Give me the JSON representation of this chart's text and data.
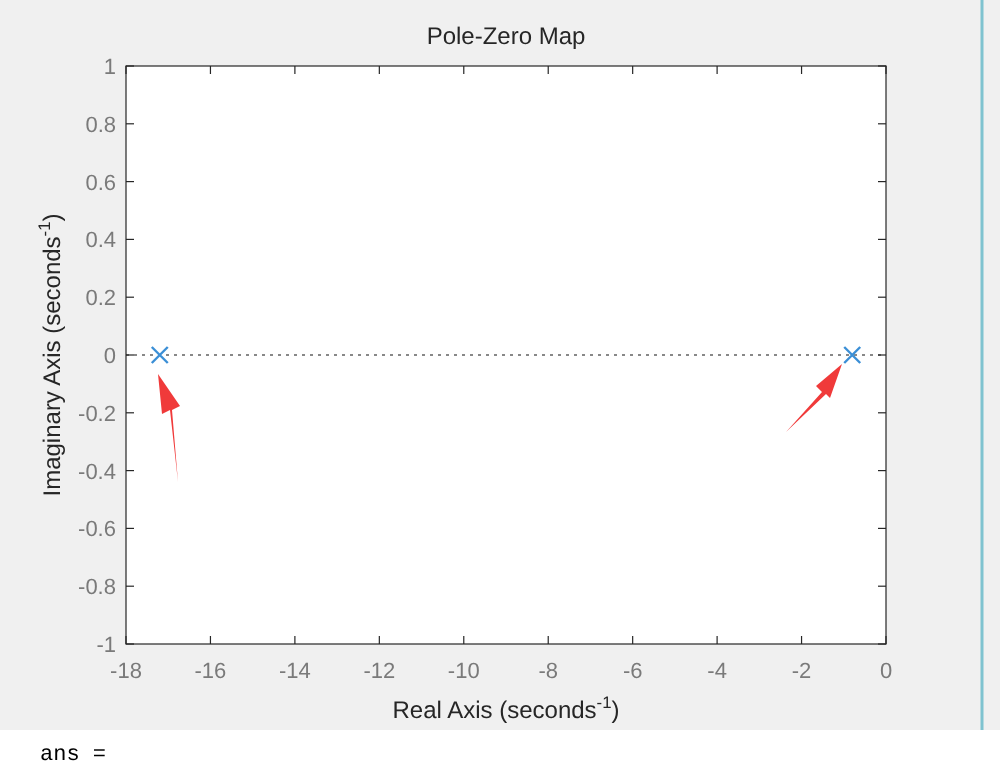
{
  "chart_data": {
    "type": "scatter",
    "title": "Pole-Zero Map",
    "xlabel": "Real Axis (seconds$^{-1}$)",
    "ylabel": "Imaginary Axis (seconds$^{-1}$)",
    "series": [
      {
        "x": [
          -17.2,
          -0.8
        ],
        "values": [
          0,
          0
        ],
        "color": "#3b8fd6"
      }
    ],
    "marker": "cross",
    "xlim": [
      -18,
      0
    ],
    "ylim": [
      -1,
      1
    ],
    "xticks": [
      -18,
      -16,
      -14,
      -12,
      -10,
      -8,
      -6,
      -4,
      -2,
      0
    ],
    "yticks": [
      -1,
      -0.8,
      -0.6,
      -0.4,
      -0.2,
      0,
      0.2,
      0.4,
      0.6,
      0.8,
      1
    ],
    "ref_lines": [
      {
        "axis": "y",
        "value": 0,
        "line_style": "dotted",
        "color": "#888888"
      }
    ],
    "grid": false,
    "annotations": [
      "ans ="
    ]
  }
}
